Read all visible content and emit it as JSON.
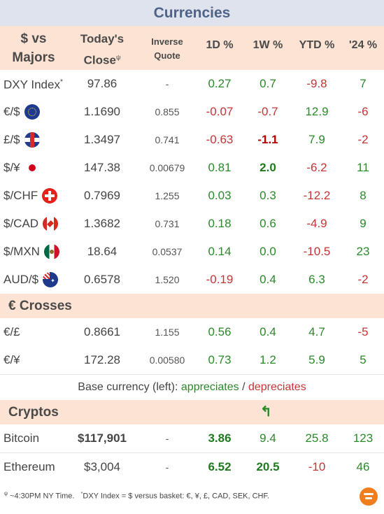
{
  "title": "Currencies",
  "headers": {
    "col1_line1": "$ vs",
    "col1_line2": "Majors",
    "col2_line1": "Today's",
    "col2_line2": "Close",
    "col2_sup": "ψ",
    "col3_line1": "Inverse",
    "col3_line2": "Quote",
    "col4": "1D %",
    "col5": "1W %",
    "col6": "YTD %",
    "col7": "'24 %"
  },
  "majors": [
    {
      "pair": "DXY Index",
      "sup": "*",
      "flag": "",
      "close": "97.86",
      "inverse": "-",
      "d1": "0.27",
      "w1": "0.7",
      "ytd": "-9.8",
      "y24": "7"
    },
    {
      "pair": "€/$",
      "sup": "",
      "flag": "eu-flag-icon",
      "close": "1.1690",
      "inverse": "0.855",
      "d1": "-0.07",
      "w1": "-0.7",
      "ytd": "12.9",
      "y24": "-6"
    },
    {
      "pair": "£/$",
      "sup": "",
      "flag": "uk-flag-icon",
      "close": "1.3497",
      "inverse": "0.741",
      "d1": "-0.63",
      "w1": "-1.1",
      "ytd": "7.9",
      "y24": "-2"
    },
    {
      "pair": "$/¥",
      "sup": "",
      "flag": "japan-flag-icon",
      "close": "147.38",
      "inverse": "0.00679",
      "d1": "0.81",
      "w1": "2.0",
      "ytd": "-6.2",
      "y24": "11"
    },
    {
      "pair": "$/CHF",
      "sup": "",
      "flag": "swiss-flag-icon",
      "close": "0.7969",
      "inverse": "1.255",
      "d1": "0.03",
      "w1": "0.3",
      "ytd": "-12.2",
      "y24": "8"
    },
    {
      "pair": "$/CAD",
      "sup": "",
      "flag": "canada-flag-icon",
      "close": "1.3682",
      "inverse": "0.731",
      "d1": "0.18",
      "w1": "0.6",
      "ytd": "-4.9",
      "y24": "9"
    },
    {
      "pair": "$/MXN",
      "sup": "",
      "flag": "mexico-flag-icon",
      "close": "18.64",
      "inverse": "0.0537",
      "d1": "0.14",
      "w1": "0.0",
      "ytd": "-10.5",
      "y24": "23"
    },
    {
      "pair": "AUD/$",
      "sup": "",
      "flag": "australia-flag-icon",
      "close": "0.6578",
      "inverse": "1.520",
      "d1": "-0.19",
      "w1": "0.4",
      "ytd": "6.3",
      "y24": "-2"
    }
  ],
  "crosses_title": "€ Crosses",
  "crosses": [
    {
      "pair": "€/£",
      "close": "0.8661",
      "inverse": "1.155",
      "d1": "0.56",
      "w1": "0.4",
      "ytd": "4.7",
      "y24": "-5"
    },
    {
      "pair": "€/¥",
      "close": "172.28",
      "inverse": "0.00580",
      "d1": "0.73",
      "w1": "1.2",
      "ytd": "5.9",
      "y24": "5"
    }
  ],
  "legend": {
    "prefix": "Base currency (left): ",
    "appreciates": "appreciates",
    "slash": " / ",
    "depreciates": "depreciates",
    "pos_color": "#2a8a2a",
    "neg_color": "#c43535"
  },
  "cryptos_title": "Cryptos",
  "cryptos_arrow": "↰",
  "cryptos": [
    {
      "name": "Bitcoin",
      "close": "$117,901",
      "inverse": "-",
      "d1": "3.86",
      "w1": "9.4",
      "ytd": "25.8",
      "y24": "123"
    },
    {
      "name": "Ethereum",
      "close": "$3,004",
      "inverse": "-",
      "d1": "6.52",
      "w1": "20.5",
      "ytd": "-10",
      "y24": "46"
    }
  ],
  "footer": {
    "psi": "ψ",
    "time_note": " ~4:30PM NY Time.",
    "star": "*",
    "dxy_note": "DXY Index = $ versus basket: €, ¥, £, CAD, SEK, CHF."
  },
  "logo_icon": "brand-logo-icon"
}
